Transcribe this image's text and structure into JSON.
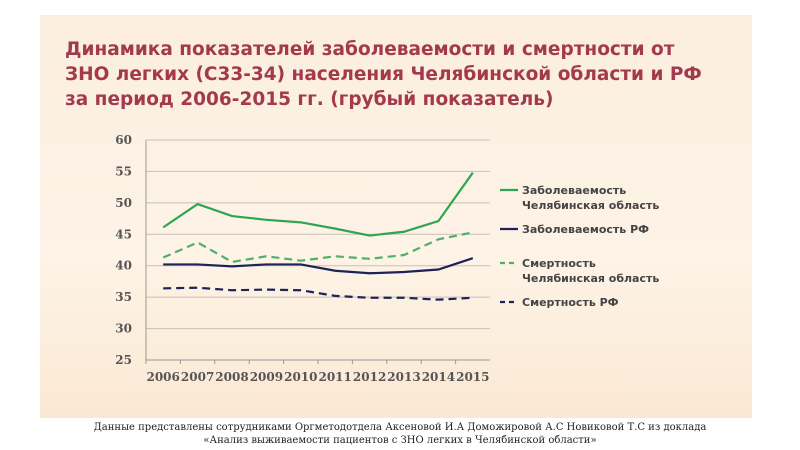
{
  "title": "Динамика показателей заболеваемости и смертности  от ЗНО легких (С33-34)  населения Челябинской области и РФ за период 2006-2015 гг. (грубый показатель)",
  "footer": {
    "line1": "Данные представлены сотрудниками Оргметодотдела Аксеновой И.А Доможировой А.С Новиковой Т.С  из доклада",
    "line2": "«Анализ выживаемости пациентов с ЗНО легких в Челябинской области»"
  },
  "chart_data": {
    "type": "line",
    "title": "Динамика показателей заболеваемости и смертности  от ЗНО легких (С33-34)  населения Челябинской области и РФ за период 2006-2015 гг. (грубый показатель)",
    "x": [
      "2006",
      "2007",
      "2008",
      "2009",
      "2010",
      "2011",
      "2012",
      "2013",
      "2014",
      "2015"
    ],
    "ylim": [
      25,
      60
    ],
    "yticks": [
      25,
      30,
      35,
      40,
      45,
      50,
      55,
      60
    ],
    "grid": true,
    "legend_position": "right",
    "series": [
      {
        "name": "Заболеваемость Челябинская область",
        "legend_lines": [
          "Заболеваемость",
          "Челябинская область"
        ],
        "color": "#2ea650",
        "dash": false,
        "values": [
          46.1,
          49.8,
          47.9,
          47.3,
          46.9,
          45.9,
          44.8,
          45.4,
          47.1,
          54.8
        ]
      },
      {
        "name": "Заболеваемость РФ",
        "legend_lines": [
          "Заболеваемость РФ"
        ],
        "color": "#1c2457",
        "dash": false,
        "values": [
          40.2,
          40.2,
          39.9,
          40.2,
          40.2,
          39.2,
          38.8,
          39.0,
          39.4,
          41.2
        ]
      },
      {
        "name": "Смертность Челябинская область",
        "legend_lines": [
          "Смертность",
          "Челябинская область"
        ],
        "color": "#4fb068",
        "dash": true,
        "values": [
          41.3,
          43.7,
          40.6,
          41.5,
          40.8,
          41.5,
          41.1,
          41.7,
          44.2,
          45.3
        ]
      },
      {
        "name": "Смертность РФ",
        "legend_lines": [
          "Смертность РФ"
        ],
        "color": "#1c2457",
        "dash": true,
        "values": [
          36.4,
          36.5,
          36.1,
          36.2,
          36.1,
          35.2,
          34.9,
          34.9,
          34.6,
          34.9
        ]
      }
    ]
  }
}
